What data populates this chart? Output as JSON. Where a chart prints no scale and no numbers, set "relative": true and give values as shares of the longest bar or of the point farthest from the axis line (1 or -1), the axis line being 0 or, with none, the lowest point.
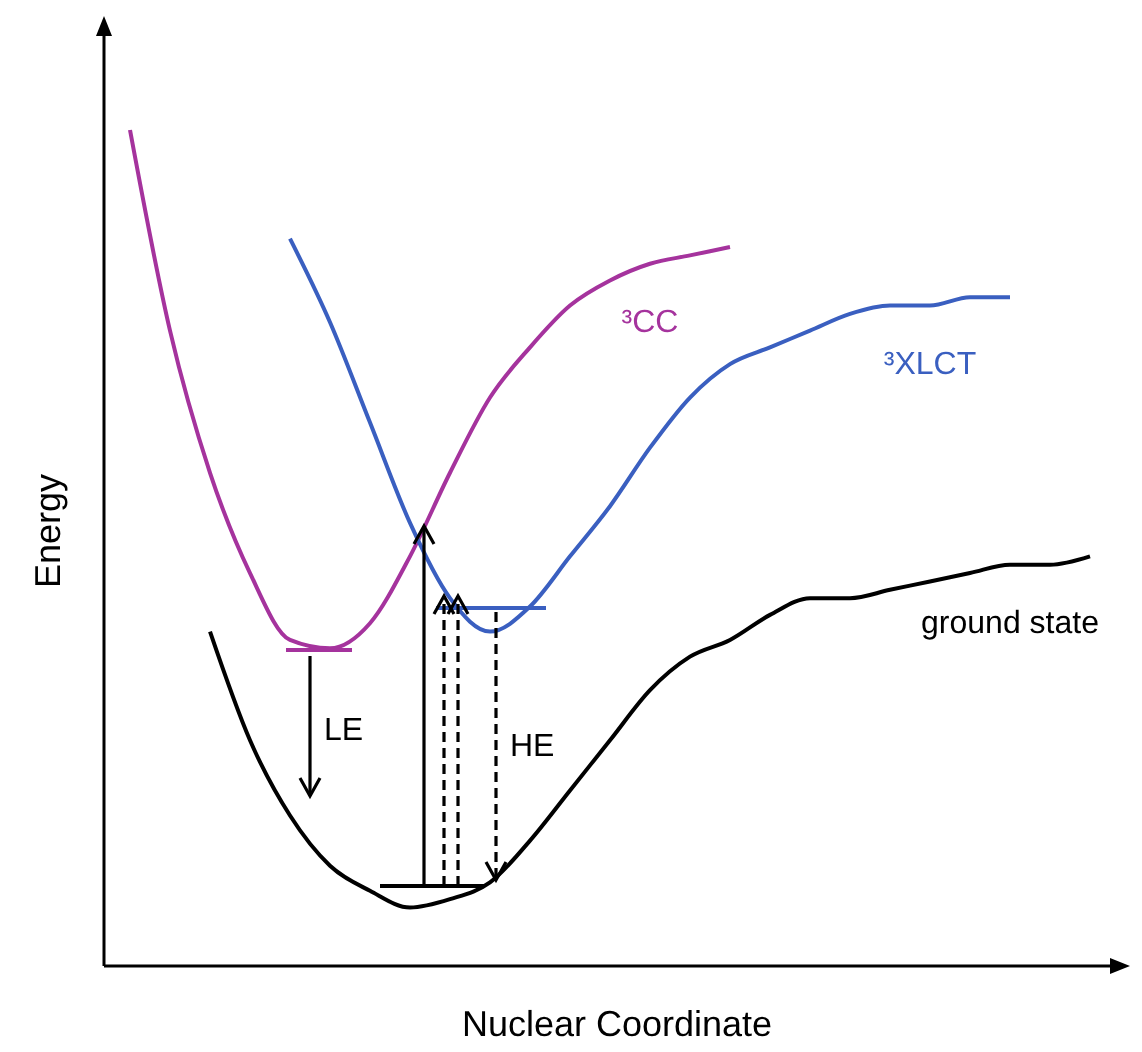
{
  "chart_data": {
    "type": "line",
    "relative": true,
    "xlabel": "Nuclear Coordinate",
    "ylabel": "Energy",
    "legend": false,
    "marker": "none",
    "categories": [
      null,
      null,
      null,
      null,
      null,
      null,
      null,
      null,
      null,
      null,
      null,
      null,
      null,
      null,
      null,
      null,
      null,
      null,
      null,
      null,
      null,
      null,
      null,
      null,
      null,
      null
    ],
    "series": [
      {
        "name": "ground state",
        "color": "#000000",
        "values": [
          null,
          null,
          0.4,
          0.27,
          0.18,
          0.12,
          0.09,
          0.07,
          0.08,
          0.1,
          0.15,
          0.21,
          0.27,
          0.33,
          0.37,
          0.39,
          0.42,
          0.44,
          0.44,
          0.45,
          0.46,
          0.47,
          0.48,
          0.48,
          0.49,
          null
        ]
      },
      {
        "name": "³CC",
        "color": "#a5339d",
        "values": [
          1,
          0.76,
          0.59,
          0.47,
          0.39,
          0.38,
          0.41,
          0.49,
          0.59,
          0.68,
          0.74,
          0.79,
          0.82,
          0.84,
          0.85,
          0.86,
          null,
          null,
          null,
          null,
          null,
          null,
          null,
          null,
          null,
          null
        ]
      },
      {
        "name": "³XLCT",
        "color": "#3a5fc0",
        "values": [
          null,
          null,
          null,
          null,
          0.87,
          0.77,
          0.65,
          0.53,
          0.44,
          0.4,
          0.43,
          0.49,
          0.55,
          0.62,
          0.68,
          0.72,
          0.74,
          0.76,
          0.78,
          0.79,
          0.79,
          0.8,
          0.8,
          null,
          null,
          null
        ]
      }
    ],
    "annotations": [
      "LE",
      "HE"
    ]
  }
}
